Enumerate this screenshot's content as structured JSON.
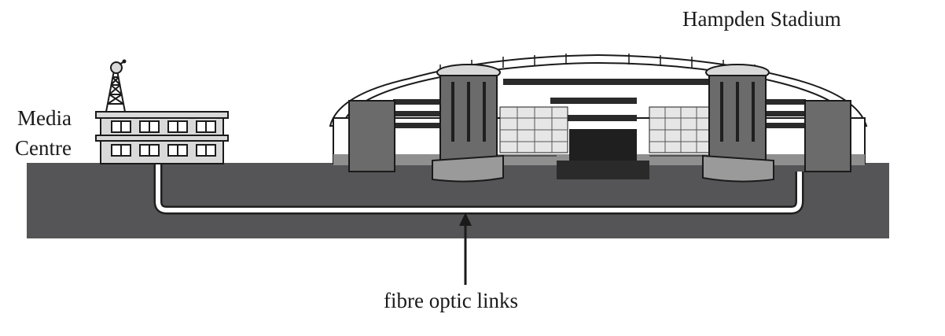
{
  "labels": {
    "stadium": "Hampden Stadium",
    "media_centre_line1": "Media",
    "media_centre_line2": "Centre",
    "fibre_links": "fibre optic links"
  },
  "colors": {
    "ground": "#555557",
    "cable_fill": "#ffffff",
    "cable_edge": "#1f1f1f",
    "building_light": "#d9d9d9",
    "building_mid": "#8f8f8f",
    "building_dark": "#6b6b6b",
    "outline": "#1a1a1a"
  }
}
